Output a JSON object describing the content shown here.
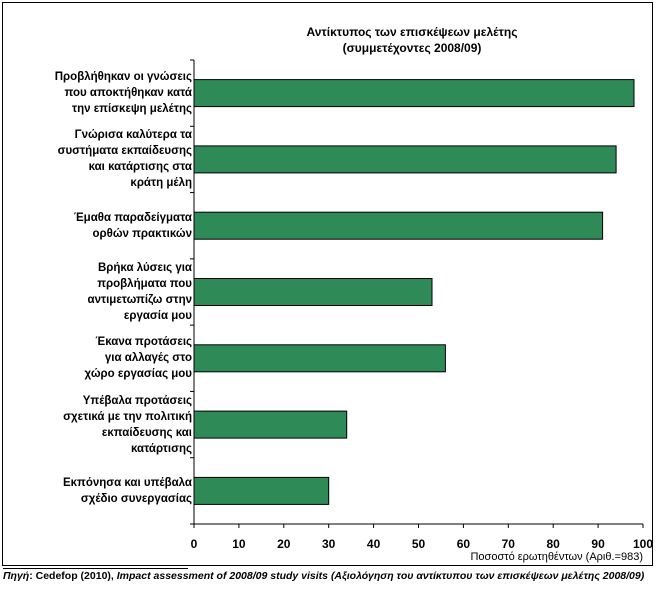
{
  "chart_data": {
    "type": "bar",
    "orientation": "horizontal",
    "title": "Αντίκτυπος των επισκέψεων μελέτης",
    "subtitle": "(συμμετέχοντες 2008/09)",
    "xlabel": "Ποσοστό ερωτηθέντων (Αριθ.=983)",
    "xlim": [
      0,
      100
    ],
    "xticks": [
      "0",
      "10",
      "20",
      "30",
      "40",
      "50",
      "60",
      "70",
      "80",
      "90",
      "100"
    ],
    "bar_color": "#2e8b57",
    "categories": [
      [
        "Προβλήθηκαν οι γνώσεις",
        "που αποκτήθηκαν κατά",
        "την επίσκεψη μελέτης"
      ],
      [
        "Γνώρισα καλύτερα τα",
        "συστήματα εκπαίδευσης",
        "και κατάρτισης στα",
        "κράτη μέλη"
      ],
      [
        "Έμαθα παραδείγματα",
        "ορθών πρακτικών"
      ],
      [
        "Βρήκα λύσεις για",
        "προβλήματα που",
        "αντιμετωπίζω στην",
        "εργασία μου"
      ],
      [
        "Έκανα προτάσεις",
        "για αλλαγές στο",
        "χώρο εργασίας μου"
      ],
      [
        "Υπέβαλα προτάσεις",
        "σχετικά με την πολιτική",
        "εκπαίδευσης και",
        "κατάρτισης"
      ],
      [
        "Εκπόνησα και υπέβαλα",
        "σχέδιο συνεργασίας"
      ]
    ],
    "values": [
      98,
      94,
      91,
      53,
      56,
      34,
      30
    ]
  },
  "source": {
    "prefix": "Πηγή",
    "text": ": Cedefop (2010), ",
    "italic": "Impact assessment of 2008/09 study visits (Αξιολόγηση του αντίκτυπου των επισκέψεων μελέτης 2008/09)"
  }
}
